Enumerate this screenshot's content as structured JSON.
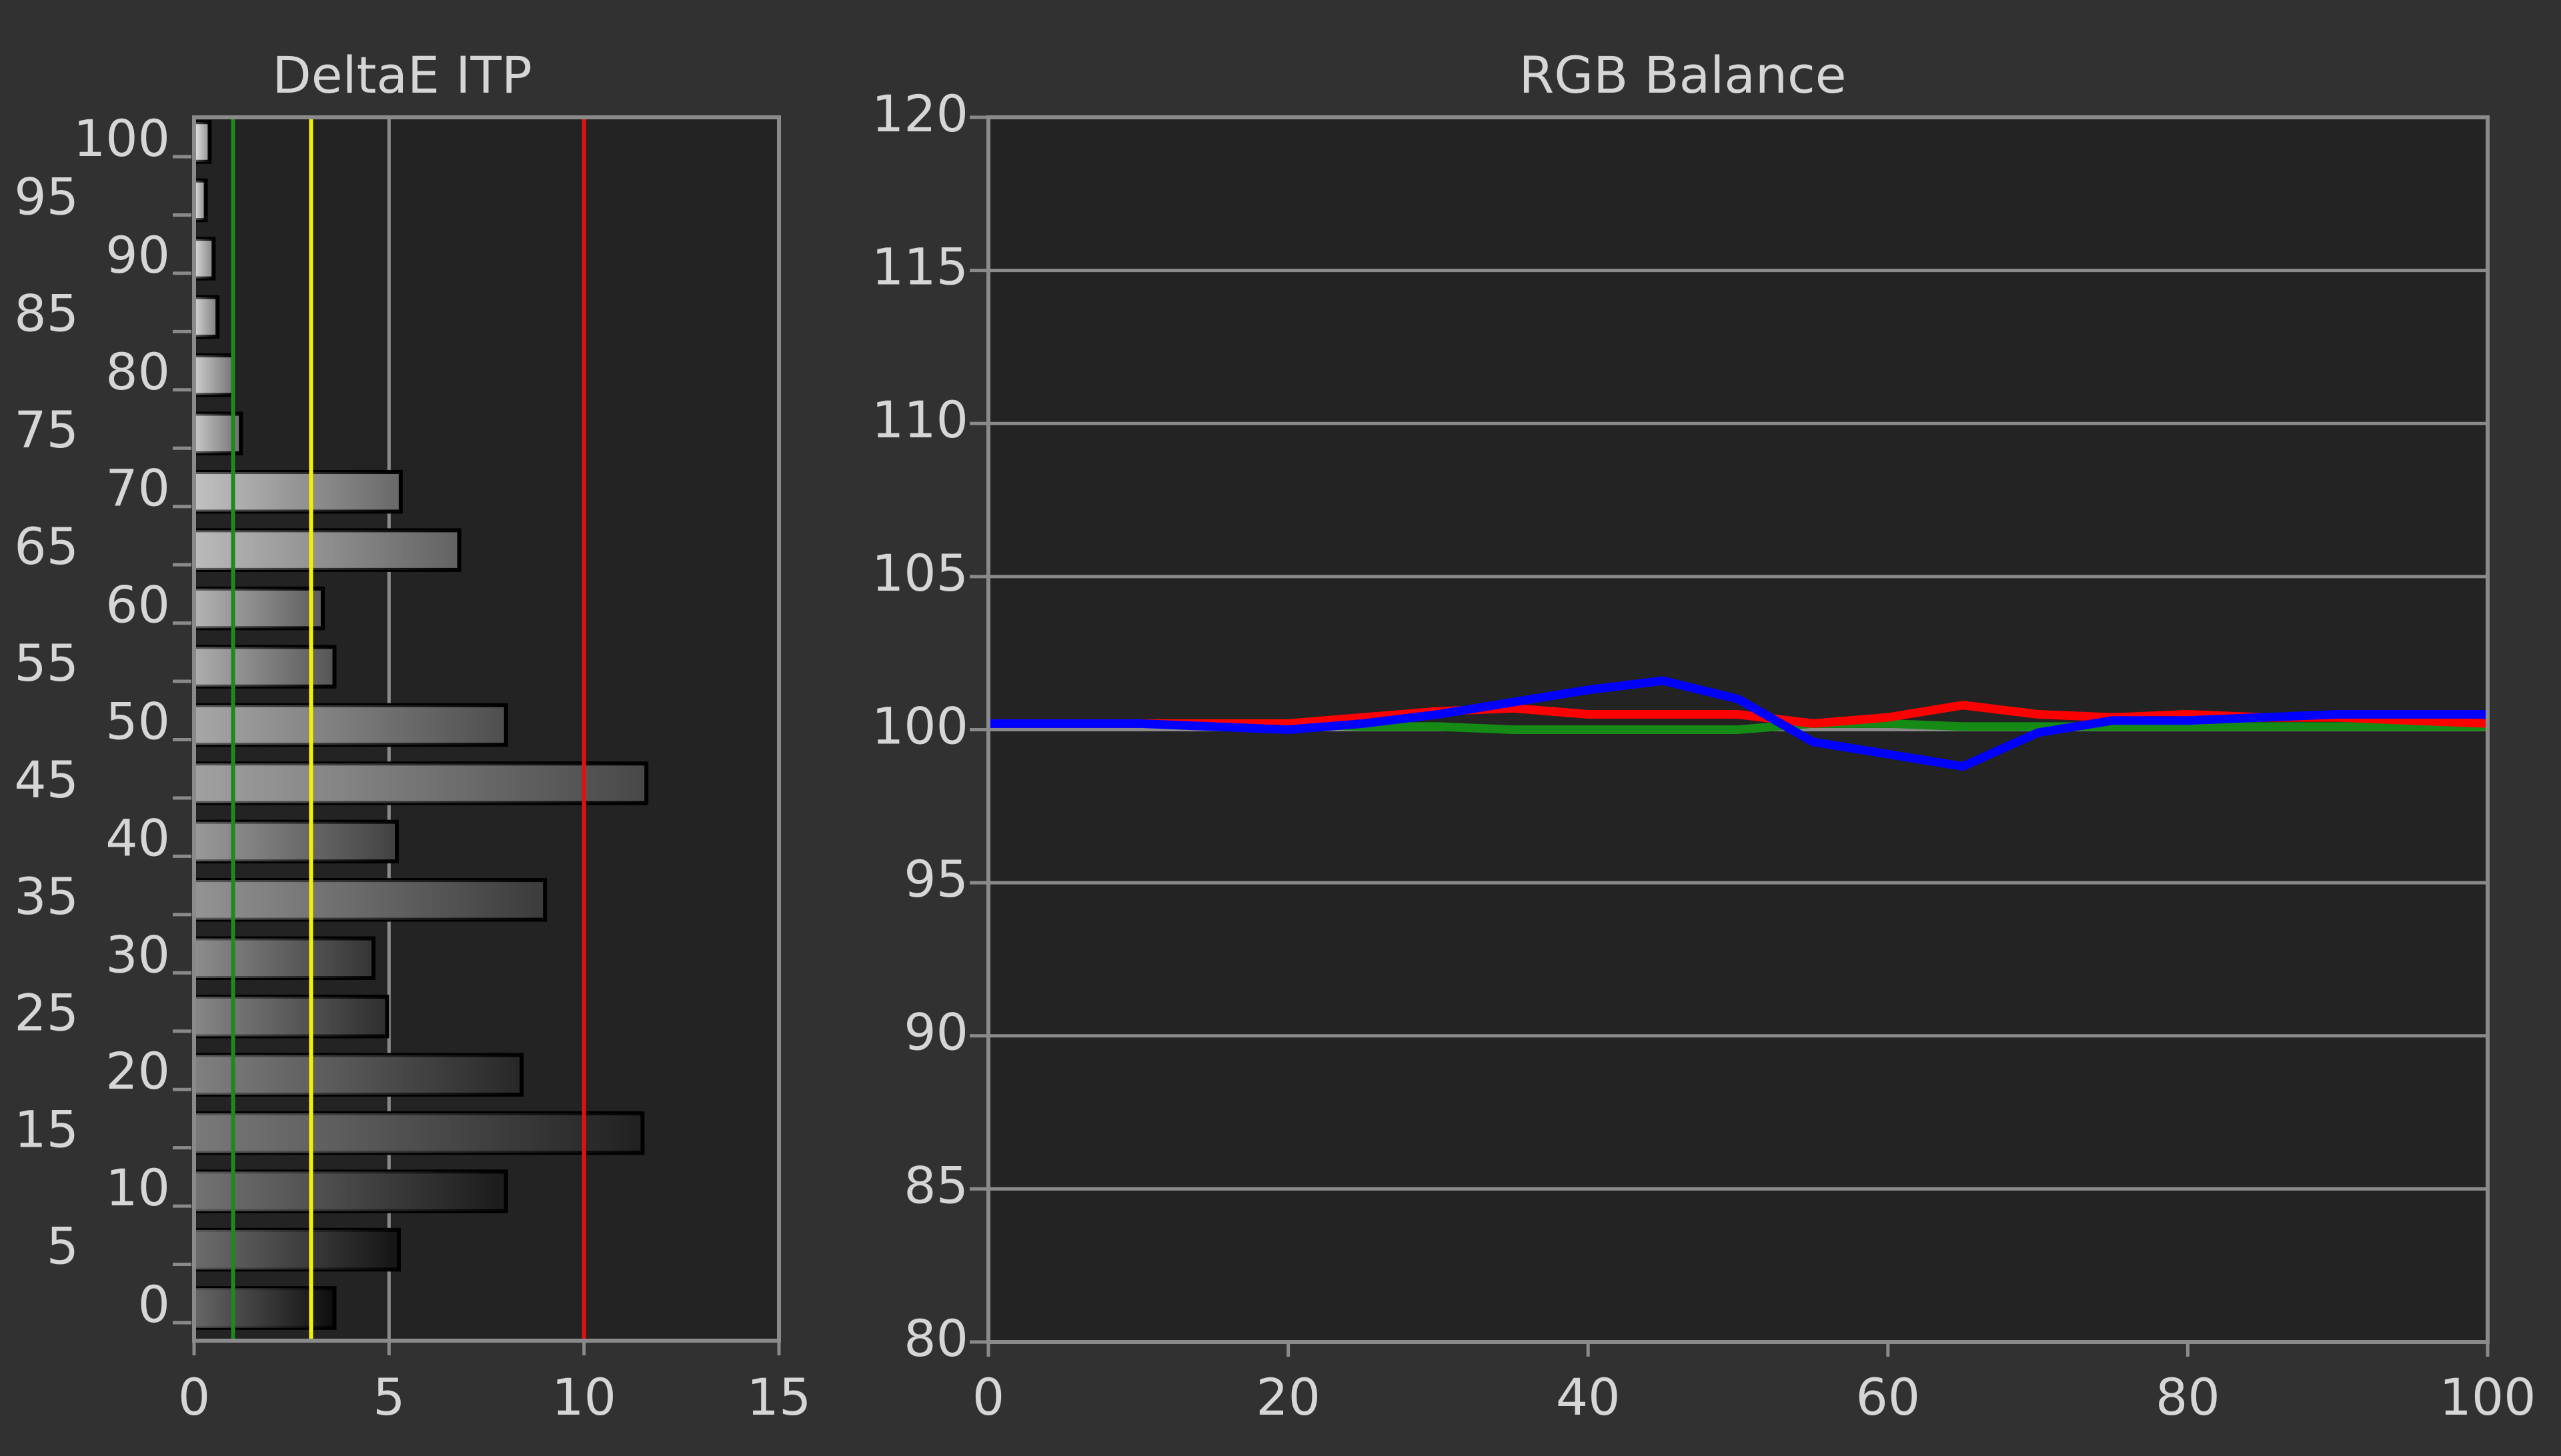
{
  "chart_data": [
    {
      "type": "hbar",
      "title": "DeltaE ITP",
      "categories": [
        "0",
        "5",
        "10",
        "15",
        "20",
        "25",
        "30",
        "35",
        "40",
        "45",
        "50",
        "55",
        "60",
        "65",
        "70",
        "75",
        "80",
        "85",
        "90",
        "95",
        "100"
      ],
      "values": [
        3.6,
        5.25,
        8.0,
        11.5,
        8.4,
        4.95,
        4.6,
        9.0,
        5.2,
        11.6,
        8.0,
        3.6,
        3.3,
        6.8,
        5.3,
        1.2,
        1.0,
        0.6,
        0.5,
        0.3,
        0.4
      ],
      "xlim": [
        0,
        15
      ],
      "xticks": [
        0,
        5,
        10,
        15
      ],
      "reference_lines": [
        {
          "value": 1,
          "color": "#1e8a1e"
        },
        {
          "value": 3,
          "color": "#f0f000"
        },
        {
          "value": 10,
          "color": "#e01010"
        }
      ],
      "grid": true
    },
    {
      "type": "line",
      "title": "RGB Balance",
      "x": [
        0,
        5,
        10,
        15,
        20,
        25,
        30,
        35,
        40,
        45,
        50,
        55,
        60,
        65,
        70,
        75,
        80,
        85,
        90,
        95,
        100
      ],
      "series": [
        {
          "color": "#158a15",
          "values": [
            100.2,
            100.2,
            100.2,
            100.2,
            100.2,
            100.1,
            100.1,
            100.0,
            100.0,
            100.0,
            100.0,
            100.2,
            100.2,
            100.1,
            100.1,
            100.1,
            100.1,
            100.1,
            100.1,
            100.1,
            100.1
          ]
        },
        {
          "color": "#ff0000",
          "values": [
            100.2,
            100.2,
            100.2,
            100.2,
            100.2,
            100.4,
            100.6,
            100.7,
            100.5,
            100.5,
            100.5,
            100.2,
            100.4,
            100.8,
            100.5,
            100.4,
            100.5,
            100.4,
            100.4,
            100.3,
            100.2
          ]
        },
        {
          "color": "#0000ff",
          "values": [
            100.2,
            100.2,
            100.2,
            100.1,
            100.0,
            100.2,
            100.5,
            100.9,
            101.3,
            101.6,
            101.0,
            99.6,
            99.2,
            98.8,
            99.9,
            100.3,
            100.3,
            100.4,
            100.5,
            100.5,
            100.5
          ]
        }
      ],
      "xlim": [
        0,
        100
      ],
      "xticks": [
        0,
        20,
        40,
        60,
        80,
        100
      ],
      "ylim": [
        80,
        120
      ],
      "yticks": [
        80,
        85,
        90,
        95,
        100,
        105,
        110,
        115,
        120
      ],
      "grid": true
    }
  ]
}
